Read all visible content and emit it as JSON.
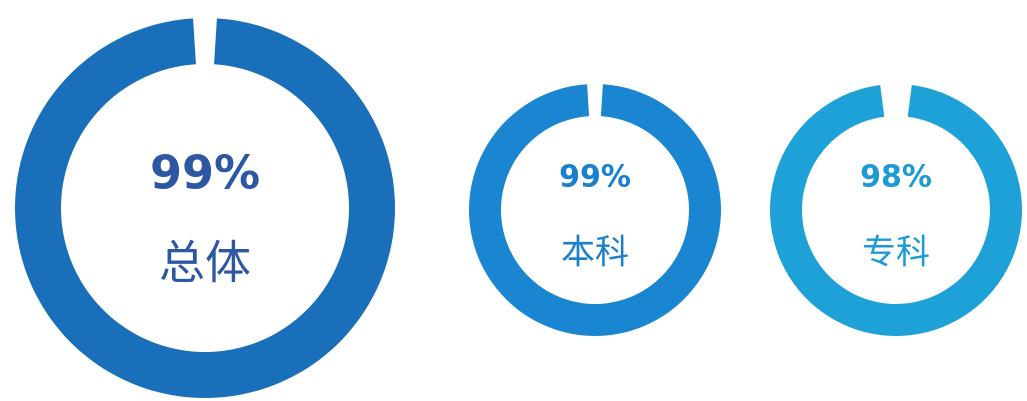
{
  "chart_data": {
    "type": "pie",
    "charts": [
      {
        "label": "总体",
        "value": 99,
        "value_label": "99%",
        "color": "#1a6fba"
      },
      {
        "label": "本科",
        "value": 99,
        "value_label": "99%",
        "color": "#1a86d1"
      },
      {
        "label": "专科",
        "value": 98,
        "value_label": "98%",
        "color": "#1da1d6"
      }
    ]
  }
}
